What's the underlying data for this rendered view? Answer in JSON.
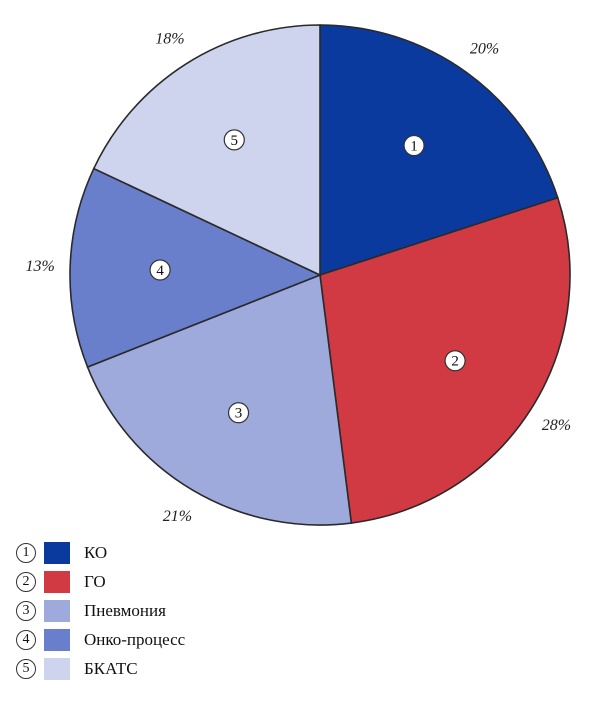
{
  "chart_data": {
    "type": "pie",
    "slices": [
      {
        "number": "1",
        "label": "КО",
        "value": 20,
        "value_label": "20%",
        "color": "#0a3a9e"
      },
      {
        "number": "2",
        "label": "ГО",
        "value": 28,
        "value_label": "28%",
        "color": "#d13a43"
      },
      {
        "number": "3",
        "label": "Пневмония",
        "value": 21,
        "value_label": "21%",
        "color": "#9ea9dc"
      },
      {
        "number": "4",
        "label": "Онко-процесс",
        "value": 13,
        "value_label": "13%",
        "color": "#6a7fcb"
      },
      {
        "number": "5",
        "label": "БКАТС",
        "value": 18,
        "value_label": "18%",
        "color": "#ced3ee"
      }
    ],
    "start": "12 o'clock",
    "direction": "clockwise",
    "legend_position": "bottom-left"
  }
}
